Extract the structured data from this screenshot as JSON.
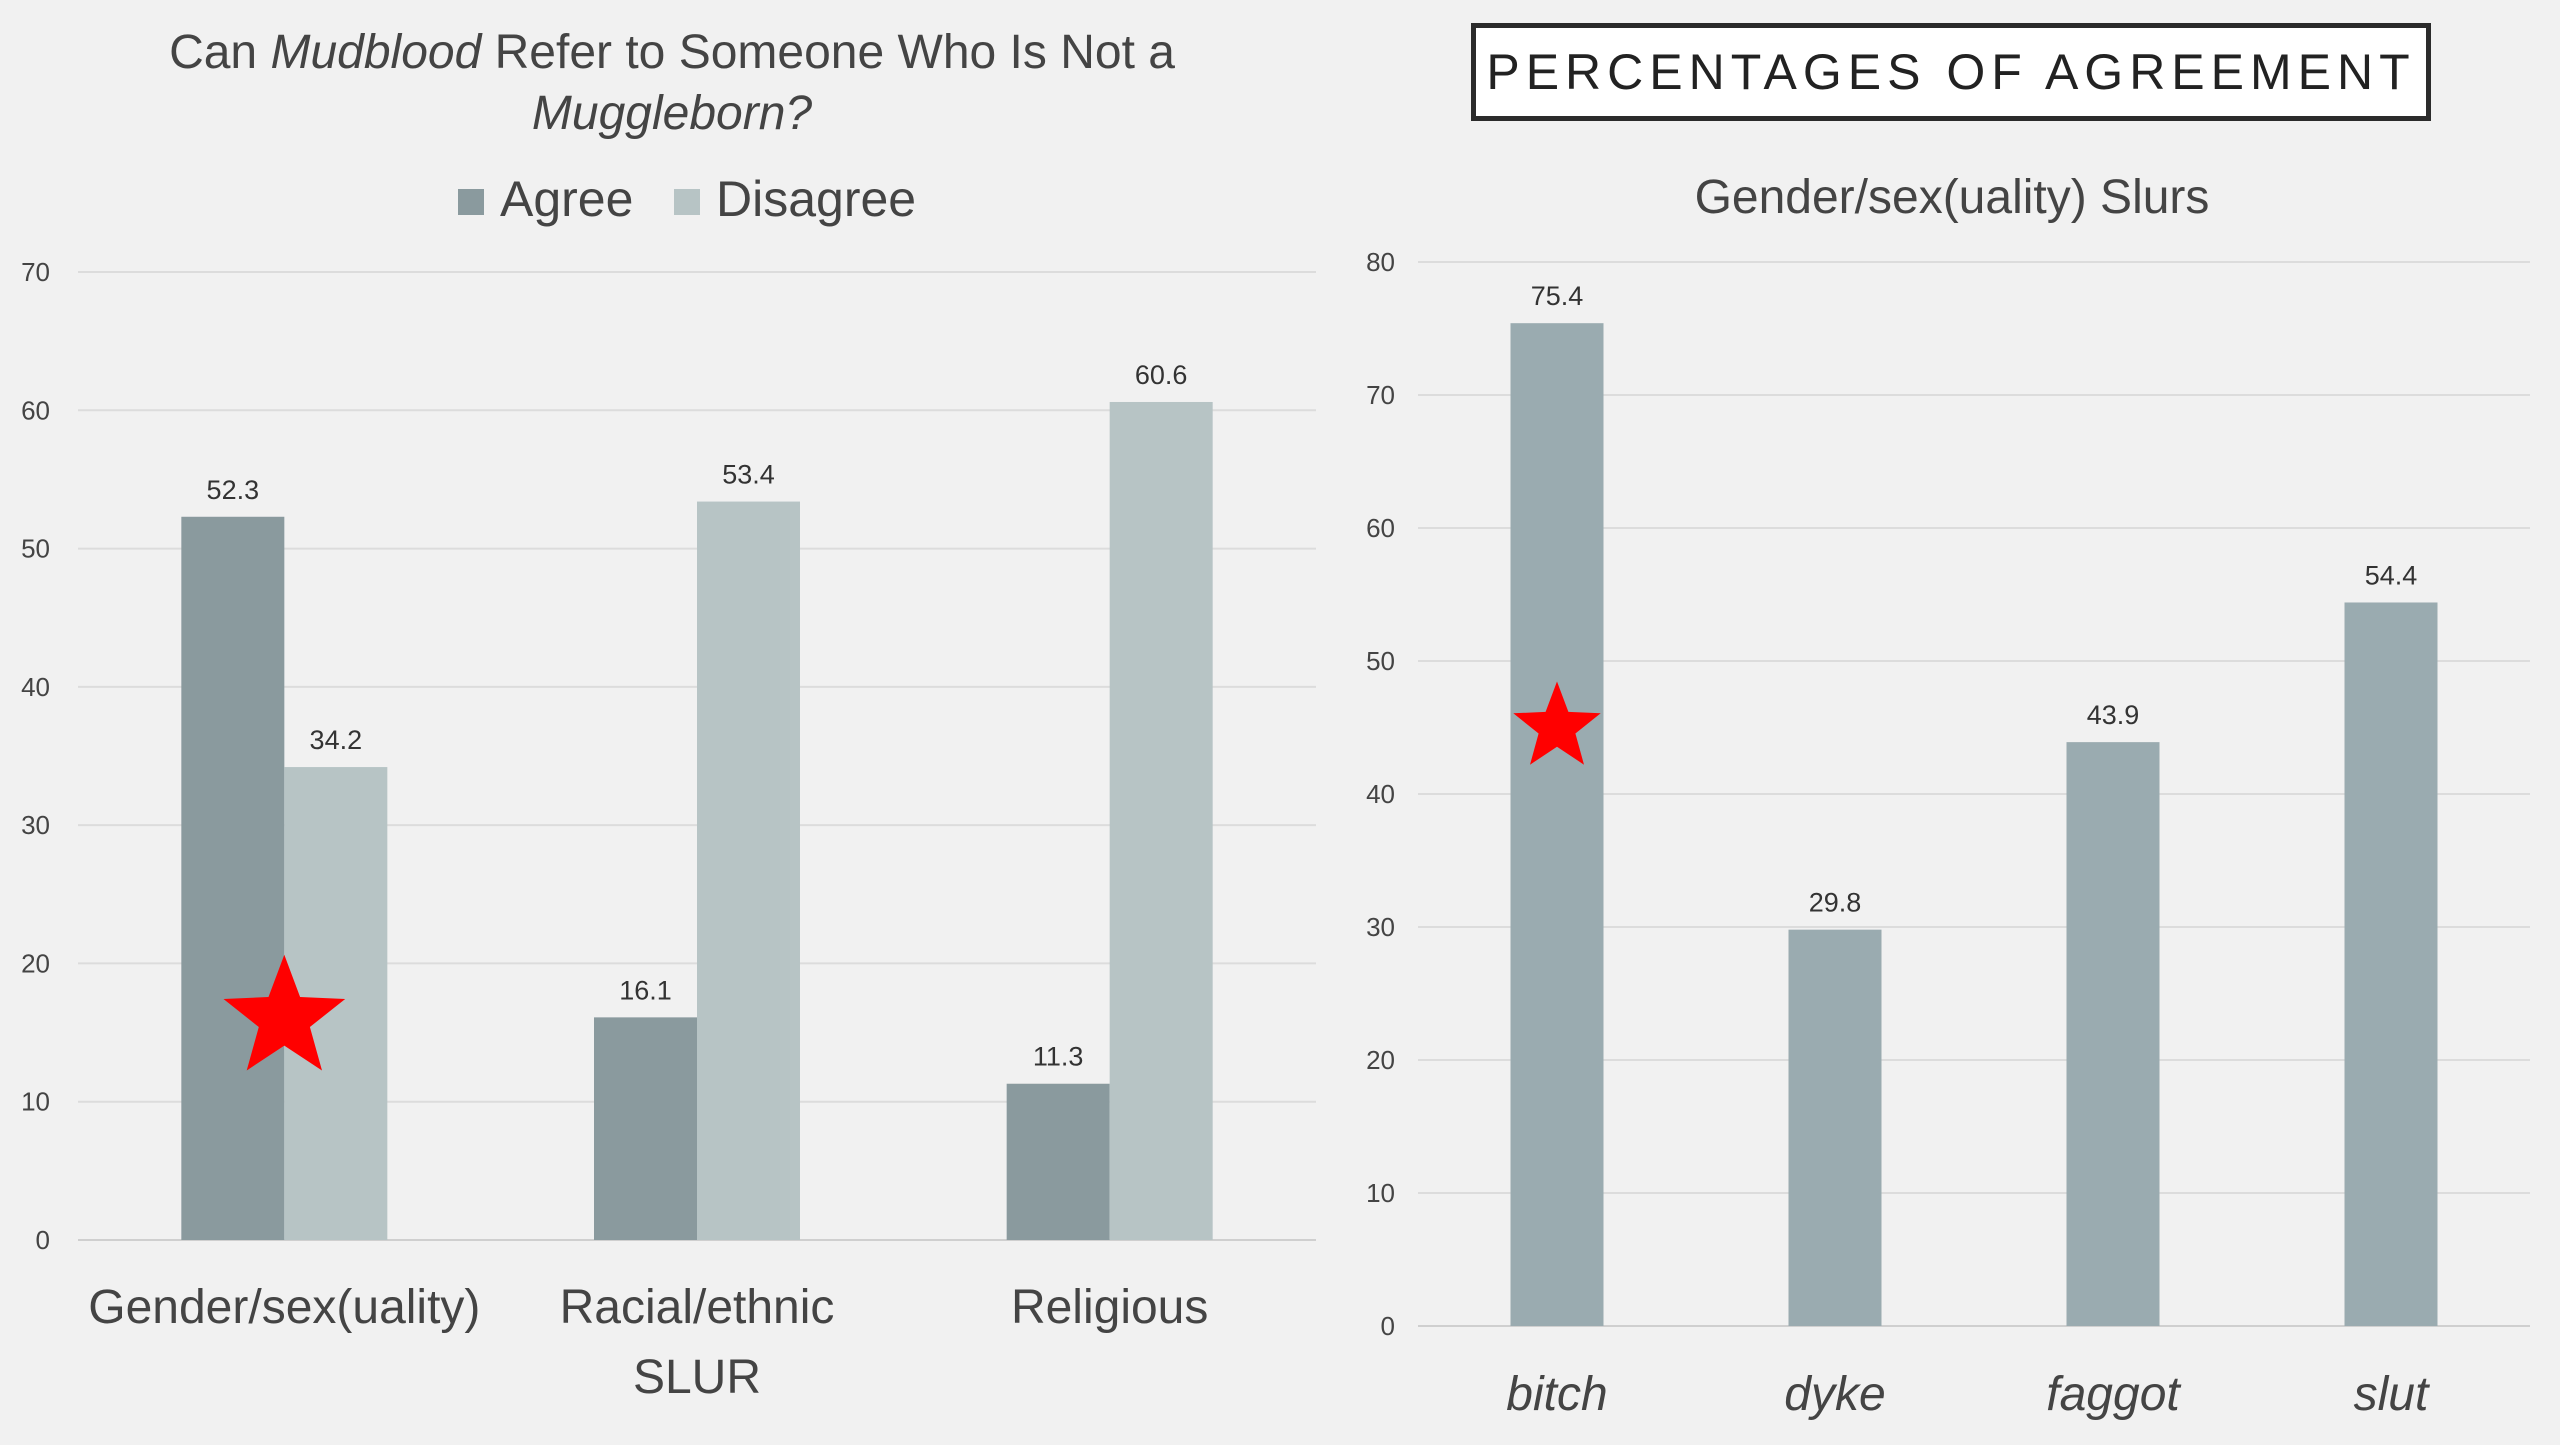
{
  "page": {
    "banner": "PERCENTAGES OF AGREEMENT"
  },
  "chart_data": [
    {
      "type": "bar",
      "title_parts": [
        {
          "text": "Can ",
          "italic": false
        },
        {
          "text": "Mudblood",
          "italic": true
        },
        {
          "text": " Refer to Someone Who Is Not a",
          "italic": false
        }
      ],
      "title_line2": "Muggleborn?",
      "categories": [
        "Gender/sex(uality)",
        "Racial/ethnic\nSLUR",
        "Religious"
      ],
      "series": [
        {
          "name": "Agree",
          "color": "#8a9a9e",
          "values": [
            52.3,
            16.1,
            11.3
          ]
        },
        {
          "name": "Disagree",
          "color": "#b7c4c5",
          "values": [
            34.2,
            53.4,
            60.6
          ]
        }
      ],
      "ylim": [
        0,
        70
      ],
      "yticks": [
        0,
        10,
        20,
        30,
        40,
        50,
        60,
        70
      ],
      "legend_position": "top-center",
      "grid": true,
      "annotations": [
        {
          "kind": "star",
          "color": "#ff0000",
          "category": "Gender/sex(uality)",
          "value": 16
        }
      ]
    },
    {
      "type": "bar",
      "title": "Gender/sex(uality) Slurs",
      "categories": [
        "bitch",
        "dyke",
        "faggot",
        "slut"
      ],
      "category_style": "italic",
      "series": [
        {
          "color": "#9aabb0",
          "values": [
            75.4,
            29.8,
            43.9,
            54.4
          ]
        }
      ],
      "ylim": [
        0,
        80
      ],
      "yticks": [
        0,
        10,
        20,
        30,
        40,
        50,
        60,
        70,
        80
      ],
      "grid": true,
      "annotations": [
        {
          "kind": "star",
          "color": "#ff0000",
          "category": "bitch",
          "value": 45
        }
      ]
    }
  ]
}
